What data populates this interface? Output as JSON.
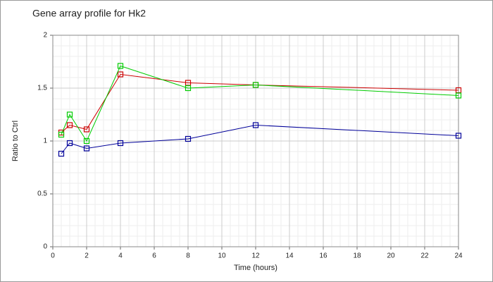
{
  "chart_data": {
    "type": "line",
    "title": "Gene array profile for Hk2",
    "x_label": "Time (hours)",
    "y_label": "Ratio to Ctrl",
    "x": [
      0.5,
      1,
      2,
      4,
      8,
      12,
      24
    ],
    "series": [
      {
        "color": "#cc0000",
        "values": [
          1.08,
          1.15,
          1.11,
          1.63,
          1.55,
          1.53,
          1.48
        ]
      },
      {
        "color": "#00cc00",
        "values": [
          1.06,
          1.25,
          1.0,
          1.71,
          1.5,
          1.53,
          1.43
        ]
      },
      {
        "color": "#000099",
        "values": [
          0.88,
          0.98,
          0.93,
          0.98,
          1.02,
          1.15,
          1.05
        ]
      }
    ],
    "xlim": [
      0,
      24
    ],
    "xticks": [
      0,
      2,
      4,
      6,
      8,
      10,
      12,
      14,
      16,
      18,
      20,
      22,
      24
    ],
    "ylim": [
      0,
      2
    ],
    "yticks": [
      0,
      0.5,
      1,
      1.5,
      2
    ],
    "grid": true,
    "minor_grid": true
  }
}
